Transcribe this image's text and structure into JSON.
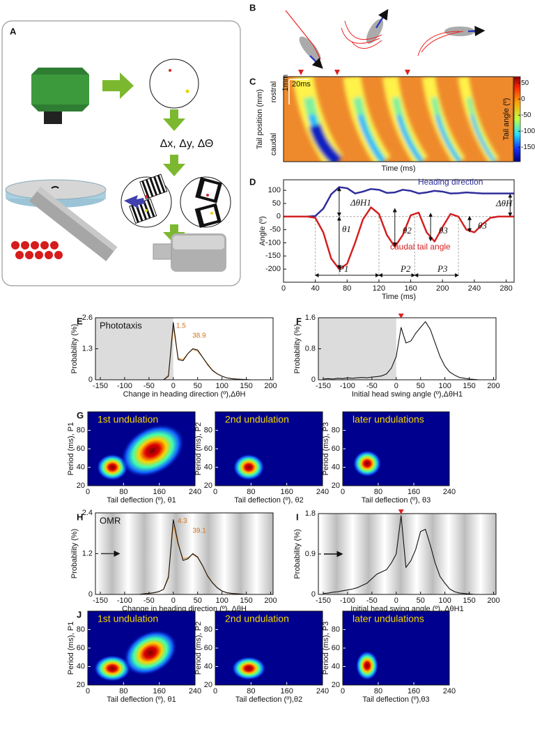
{
  "figure": {
    "panel_labels": [
      "A",
      "B",
      "C",
      "D",
      "E",
      "F",
      "G",
      "H",
      "I",
      "J"
    ],
    "panel_a_text": "Δx, Δy, ΔΘ"
  },
  "chart_data": [
    {
      "type": "tailmap",
      "xlabel": "Time (ms)",
      "ylabel": "Tail position (mm)",
      "y_top_label": "rostral",
      "y_bottom_label": "caudal",
      "scale_bar_y": "1mm",
      "scale_bar_x": "20ms",
      "colorbar_label": "Tail angle (º)",
      "clim": [
        -195,
        70
      ],
      "cticks": [
        50,
        0,
        -50,
        -100,
        -150
      ]
    },
    {
      "type": "line",
      "xlabel": "Time (ms)",
      "ylabel": "Angle (º)",
      "xlim": [
        0,
        290
      ],
      "xticks": [
        0,
        40,
        80,
        120,
        160,
        200,
        240,
        280
      ],
      "ylim": [
        -250,
        140
      ],
      "yticks": [
        -200,
        -150,
        -100,
        -50,
        0,
        50,
        100
      ],
      "x": [
        0,
        10,
        20,
        30,
        40,
        50,
        60,
        70,
        80,
        90,
        100,
        110,
        120,
        130,
        140,
        150,
        160,
        170,
        180,
        190,
        200,
        210,
        220,
        230,
        240,
        250,
        260,
        270,
        280,
        290
      ],
      "series": [
        {
          "name": "Heading direction",
          "color": "#2e2e9c",
          "values": [
            0,
            0,
            0,
            0,
            2,
            30,
            85,
            112,
            108,
            88,
            95,
            105,
            102,
            90,
            92,
            102,
            98,
            88,
            92,
            98,
            95,
            88,
            89,
            92,
            90,
            88,
            88,
            88,
            88,
            88
          ]
        },
        {
          "name": "caudal tail angle",
          "color": "#d42020",
          "values": [
            0,
            0,
            0,
            0,
            -5,
            -60,
            -160,
            -200,
            -180,
            -100,
            -10,
            35,
            10,
            -70,
            -115,
            -70,
            5,
            15,
            -60,
            -95,
            -40,
            10,
            0,
            -50,
            -60,
            -30,
            -5,
            0,
            0,
            0
          ]
        }
      ],
      "annotations": [
        "ΔθH1",
        "ΔθH",
        "θ1",
        "θ2",
        "θ3",
        "θ3",
        "P1",
        "P2",
        "P3"
      ]
    },
    {
      "type": "line",
      "xlabel": "Change in heading direction (º),ΔθH",
      "ylabel": "Probability (%)",
      "inset_label": "Phototaxis",
      "shade_negative": true,
      "xlim": [
        -160,
        205
      ],
      "xticks": [
        -150,
        -100,
        -50,
        0,
        50,
        100,
        150,
        200
      ],
      "ylim": [
        0,
        2.6
      ],
      "yticks": [
        0,
        1.3,
        2.6
      ],
      "peak_labels": [
        1.5,
        38.9
      ],
      "x": [
        -150,
        -140,
        -130,
        -120,
        -110,
        -100,
        -90,
        -80,
        -70,
        -60,
        -50,
        -40,
        -30,
        -20,
        -10,
        0,
        10,
        20,
        30,
        40,
        50,
        60,
        70,
        80,
        90,
        100,
        110,
        120,
        130,
        140,
        150,
        160,
        170,
        180,
        190,
        200
      ],
      "series": [
        {
          "color": "#e8902a",
          "values": [
            0,
            0,
            0,
            0,
            0,
            0,
            0,
            0,
            0,
            0,
            0,
            0,
            0,
            0,
            0.2,
            2.2,
            0.9,
            0.85,
            1.1,
            1.28,
            1.2,
            0.95,
            0.68,
            0.42,
            0.26,
            0.15,
            0.08,
            0.04,
            0.02,
            0.01,
            0,
            0,
            0,
            0,
            0,
            0
          ]
        },
        {
          "color": "#111111",
          "values": [
            0,
            0,
            0,
            0,
            0,
            0,
            0,
            0,
            0,
            0,
            0,
            0,
            0,
            0,
            0.15,
            2.4,
            0.85,
            0.8,
            1.1,
            1.3,
            1.25,
            0.95,
            0.65,
            0.4,
            0.25,
            0.15,
            0.08,
            0.05,
            0.03,
            0.02,
            0.01,
            0,
            0,
            0,
            0,
            0
          ]
        }
      ]
    },
    {
      "type": "line",
      "xlabel": "Initial head swing angle (º),ΔθH1",
      "ylabel": "Probability (%)",
      "shade_negative": true,
      "xlim": [
        -160,
        205
      ],
      "xticks": [
        -150,
        -100,
        -50,
        0,
        50,
        100,
        150,
        200
      ],
      "ylim": [
        0,
        1.6
      ],
      "yticks": [
        0,
        0.8,
        1.6
      ],
      "x": [
        -150,
        -140,
        -130,
        -120,
        -110,
        -100,
        -90,
        -80,
        -70,
        -60,
        -50,
        -40,
        -30,
        -20,
        -10,
        0,
        10,
        20,
        30,
        40,
        50,
        60,
        70,
        80,
        90,
        100,
        110,
        120,
        130,
        140,
        150,
        160,
        170,
        180,
        190,
        200
      ],
      "series": [
        {
          "color": "#111111",
          "values": [
            0.02,
            0.03,
            0.02,
            0.04,
            0.03,
            0.05,
            0.04,
            0.05,
            0.06,
            0.05,
            0.07,
            0.08,
            0.1,
            0.15,
            0.3,
            0.6,
            1.35,
            0.95,
            1.0,
            1.2,
            1.35,
            1.5,
            1.3,
            0.95,
            0.6,
            0.35,
            0.2,
            0.12,
            0.06,
            0.04,
            0.02,
            0.01,
            0,
            0,
            0,
            0
          ]
        }
      ]
    },
    {
      "type": "heatmap",
      "title": "1st undulation",
      "xlabel": "Tail deflection (º),  θ1",
      "ylabel": "Period (ms), P1",
      "xlim": [
        0,
        240
      ],
      "xticks": [
        0,
        80,
        160,
        240
      ],
      "ylim": [
        20,
        100
      ],
      "yticks": [
        20,
        40,
        60,
        80
      ]
    },
    {
      "type": "heatmap",
      "title": "2nd undulation",
      "xlabel": "Tail deflection (º),  θ2",
      "ylabel": "Period (ms), P2",
      "xlim": [
        0,
        240
      ],
      "xticks": [
        0,
        80,
        160,
        240
      ],
      "ylim": [
        20,
        100
      ],
      "yticks": [
        20,
        40,
        60,
        80
      ]
    },
    {
      "type": "heatmap",
      "title": "later undulations",
      "xlabel": "Tail deflection (º),  θ3",
      "ylabel": "Period (ms), P3",
      "xlim": [
        0,
        240
      ],
      "xticks": [
        0,
        80,
        160,
        240
      ],
      "ylim": [
        20,
        100
      ],
      "yticks": [
        20,
        40,
        60,
        80
      ]
    },
    {
      "type": "line",
      "xlabel": "Change in heading direction (º), ΔθH",
      "ylabel": "Probability (%)",
      "inset_label": "OMR",
      "stripes": true,
      "xlim": [
        -160,
        205
      ],
      "xticks": [
        -150,
        -100,
        -50,
        0,
        50,
        100,
        150,
        200
      ],
      "ylim": [
        0,
        2.4
      ],
      "yticks": [
        0,
        1.2,
        2.4
      ],
      "peak_labels": [
        4.3,
        39.1
      ],
      "x": [
        -150,
        -140,
        -130,
        -120,
        -110,
        -100,
        -90,
        -80,
        -70,
        -60,
        -50,
        -40,
        -30,
        -20,
        -10,
        0,
        10,
        20,
        30,
        40,
        50,
        60,
        70,
        80,
        90,
        100,
        110,
        120,
        130,
        140,
        150,
        160,
        170,
        180,
        190,
        200
      ],
      "series": [
        {
          "color": "#e8902a",
          "values": [
            0,
            0,
            0,
            0,
            0,
            0,
            0,
            0,
            0,
            0.02,
            0.03,
            0.05,
            0.08,
            0.15,
            0.55,
            2.05,
            1.45,
            1.05,
            1.08,
            1.18,
            1.08,
            0.85,
            0.57,
            0.36,
            0.2,
            0.1,
            0.05,
            0.03,
            0.02,
            0.01,
            0,
            0,
            0,
            0,
            0,
            0
          ]
        },
        {
          "color": "#111111",
          "values": [
            0,
            0,
            0,
            0,
            0,
            0,
            0,
            0,
            0,
            0.02,
            0.03,
            0.05,
            0.08,
            0.15,
            0.5,
            2.2,
            1.5,
            1.0,
            1.05,
            1.2,
            1.1,
            0.85,
            0.55,
            0.35,
            0.2,
            0.1,
            0.05,
            0.03,
            0.02,
            0.01,
            0,
            0,
            0,
            0,
            0,
            0
          ]
        }
      ]
    },
    {
      "type": "line",
      "xlabel": "Initial head swing angle (º), ΔθH1",
      "ylabel": "Probability (%)",
      "stripes": true,
      "xlim": [
        -160,
        205
      ],
      "xticks": [
        -150,
        -100,
        -50,
        0,
        50,
        100,
        150,
        200
      ],
      "ylim": [
        0,
        1.8
      ],
      "yticks": [
        0,
        0.9,
        1.8
      ],
      "x": [
        -150,
        -140,
        -130,
        -120,
        -110,
        -100,
        -90,
        -80,
        -70,
        -60,
        -50,
        -40,
        -30,
        -20,
        -10,
        0,
        10,
        20,
        30,
        40,
        50,
        60,
        70,
        80,
        90,
        100,
        110,
        120,
        130,
        140,
        150,
        160,
        170,
        180,
        190,
        200
      ],
      "series": [
        {
          "color": "#111111",
          "values": [
            0.02,
            0.03,
            0.05,
            0.06,
            0.08,
            0.1,
            0.12,
            0.15,
            0.2,
            0.25,
            0.35,
            0.45,
            0.5,
            0.55,
            0.7,
            0.9,
            1.75,
            0.6,
            0.75,
            1.0,
            1.4,
            1.45,
            1.1,
            0.7,
            0.4,
            0.25,
            0.12,
            0.06,
            0.03,
            0.02,
            0.01,
            0,
            0,
            0,
            0,
            0
          ]
        }
      ]
    },
    {
      "type": "heatmap",
      "title": "1st undulation",
      "xlabel": "Tail deflection (º), θ1",
      "ylabel": "Period (ms), P1",
      "xlim": [
        0,
        240
      ],
      "xticks": [
        0,
        80,
        160,
        240
      ],
      "ylim": [
        20,
        100
      ],
      "yticks": [
        20,
        40,
        60,
        80
      ]
    },
    {
      "type": "heatmap",
      "title": "2nd undulation",
      "xlabel": "Tail deflection (º),θ2",
      "ylabel": "Period (ms), P2",
      "xlim": [
        0,
        240
      ],
      "xticks": [
        0,
        80,
        160,
        240
      ],
      "ylim": [
        20,
        100
      ],
      "yticks": [
        20,
        40,
        60,
        80
      ]
    },
    {
      "type": "heatmap",
      "title": "later undulations",
      "xlabel": "Tail deflection (º),θ3",
      "ylabel": "Period (ms), P3",
      "xlim": [
        0,
        240
      ],
      "xticks": [
        0,
        80,
        160,
        240
      ],
      "ylim": [
        20,
        100
      ],
      "yticks": [
        20,
        40,
        60,
        80
      ]
    }
  ]
}
